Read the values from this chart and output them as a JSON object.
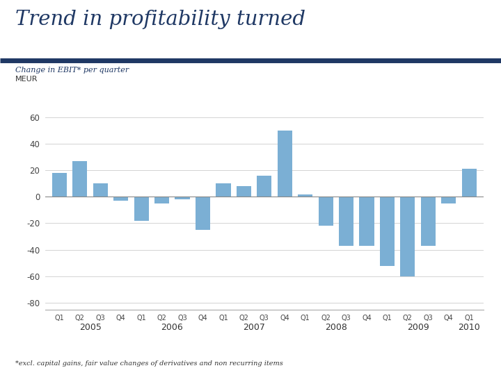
{
  "title": "Trend in profitability turned",
  "subtitle": "Change in EBIT* per quarter",
  "meur_label": "MEUR",
  "footnote": "*excl. capital gains, fair value changes of derivatives and non recurring items",
  "bar_color": "#7BAFD4",
  "background_color": "#FFFFFF",
  "header_line_color": "#1F3864",
  "title_color": "#1F3864",
  "ylim": [
    -85,
    65
  ],
  "yticks": [
    -80,
    -60,
    -40,
    -20,
    0,
    20,
    40,
    60
  ],
  "year_labels": [
    "2005",
    "2006",
    "2007",
    "2008",
    "2009",
    "2010"
  ],
  "year_positions": [
    1.5,
    5.5,
    9.5,
    13.5,
    17.5,
    20.0
  ],
  "quarter_labels": [
    "Q1",
    "Q2",
    "Q3",
    "Q4",
    "Q1",
    "Q2",
    "Q3",
    "Q4",
    "Q1",
    "Q2",
    "Q3",
    "Q4",
    "Q1",
    "Q2",
    "Q3",
    "Q4",
    "Q1",
    "Q2",
    "Q3",
    "Q4",
    "Q1"
  ],
  "values": [
    18,
    27,
    10,
    -3,
    -18,
    -5,
    -2,
    -25,
    10,
    8,
    16,
    50,
    2,
    -22,
    -37,
    -37,
    -52,
    -60,
    -37,
    -5,
    21
  ]
}
